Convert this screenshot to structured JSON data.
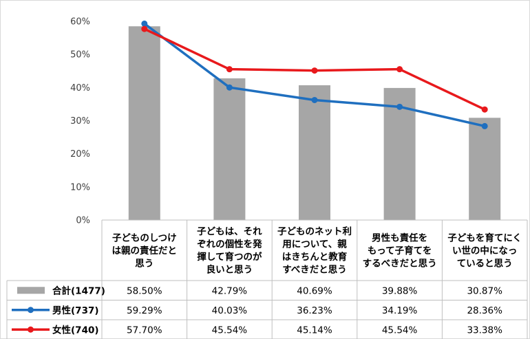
{
  "chart_data": {
    "type": "bar",
    "categories": [
      [
        "子どものしつけ",
        "は親の責任だと",
        "思う"
      ],
      [
        "子どもは、それ",
        "ぞれの個性を発",
        "揮して育つのが",
        "良いと思う"
      ],
      [
        "子どものネット利",
        "用について、親",
        "はきちんと教育",
        "すべきだと思う"
      ],
      [
        "男性も責任を",
        "もって子育てを",
        "するべきだと思う"
      ],
      [
        "子どもを育てにく",
        "い世の中になっ",
        "ていると思う"
      ]
    ],
    "ylim": [
      0,
      60
    ],
    "yticks": [
      0,
      10,
      20,
      30,
      40,
      50,
      60
    ],
    "ytick_labels": [
      "0%",
      "10%",
      "20%",
      "30%",
      "40%",
      "50%",
      "60%"
    ],
    "grid": false,
    "legend_position": "table-left",
    "series": [
      {
        "name": "合計(1477)",
        "kind": "bar",
        "color": "#a6a6a6",
        "values": [
          58.5,
          42.79,
          40.69,
          39.88,
          30.87
        ],
        "labels": [
          "58.50%",
          "42.79%",
          "40.69%",
          "39.88%",
          "30.87%"
        ]
      },
      {
        "name": "男性(737)",
        "kind": "line",
        "color": "#1f6fbf",
        "values": [
          59.29,
          40.03,
          36.23,
          34.19,
          28.36
        ],
        "labels": [
          "59.29%",
          "40.03%",
          "36.23%",
          "34.19%",
          "28.36%"
        ]
      },
      {
        "name": "女性(740)",
        "kind": "line",
        "color": "#e8191c",
        "values": [
          57.7,
          45.54,
          45.14,
          45.54,
          33.38
        ],
        "labels": [
          "57.70%",
          "45.54%",
          "45.14%",
          "45.54%",
          "33.38%"
        ]
      }
    ]
  }
}
